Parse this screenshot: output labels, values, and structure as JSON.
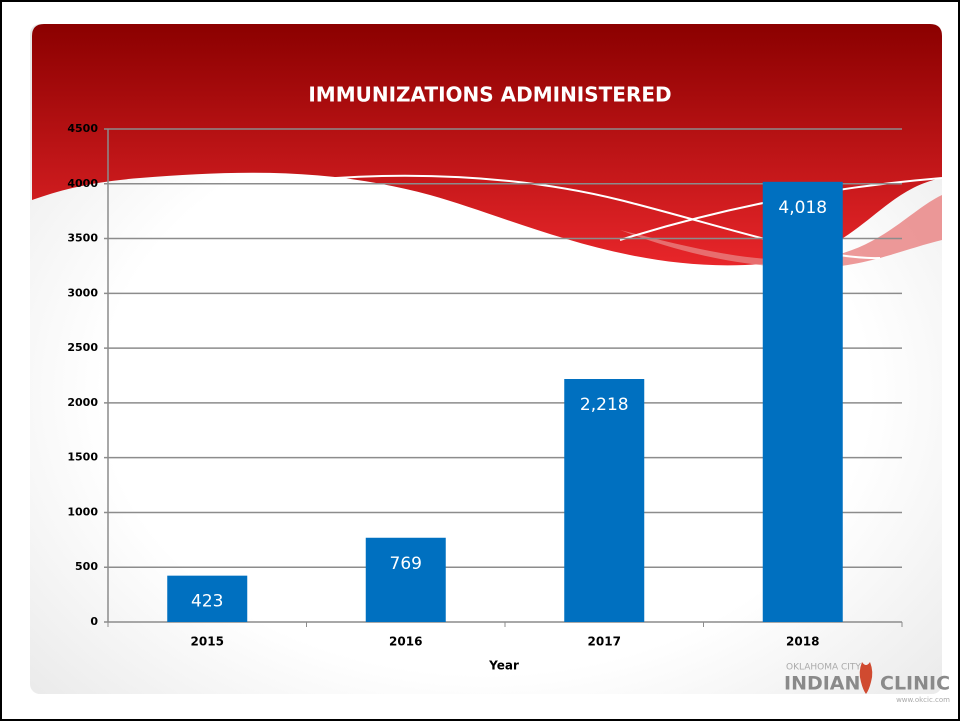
{
  "chart_data": {
    "type": "bar",
    "title": "IMMUNIZATIONS ADMINISTERED",
    "x_label": "Year",
    "categories": [
      "2015",
      "2016",
      "2017",
      "2018"
    ],
    "values": [
      423,
      769,
      2218,
      4018
    ],
    "value_labels": [
      "423",
      "769",
      "2,218",
      "4,018"
    ],
    "color": "#0070c0",
    "ylim": [
      0,
      4500
    ],
    "yticks": [
      0,
      500,
      1000,
      1500,
      2000,
      2500,
      3000,
      3500,
      4000,
      4500
    ],
    "grid": true
  },
  "logo": {
    "city": "OKLAHOMA CITY",
    "word1": "INDIAN",
    "word2": "CLINIC",
    "url": "www.okcic.com"
  }
}
